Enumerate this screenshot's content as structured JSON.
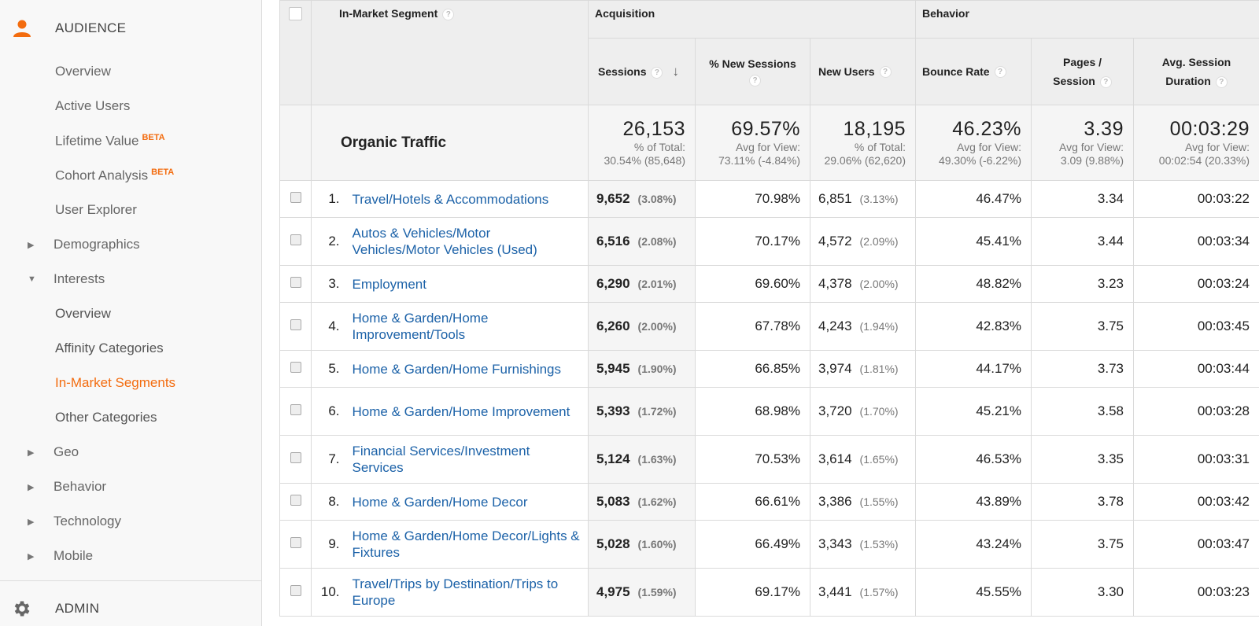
{
  "sidebar": {
    "audience_label": "AUDIENCE",
    "admin_label": "ADMIN",
    "beta": "BETA",
    "items": [
      {
        "label": "Overview"
      },
      {
        "label": "Active Users"
      },
      {
        "label": "Lifetime Value"
      },
      {
        "label": "Cohort Analysis"
      },
      {
        "label": "User Explorer"
      },
      {
        "label": "Demographics"
      },
      {
        "label": "Interests"
      },
      {
        "label": "Overview"
      },
      {
        "label": "Affinity Categories"
      },
      {
        "label": "In-Market Segments"
      },
      {
        "label": "Other Categories"
      },
      {
        "label": "Geo"
      },
      {
        "label": "Behavior"
      },
      {
        "label": "Technology"
      },
      {
        "label": "Mobile"
      }
    ],
    "accent": "#f36c0f"
  },
  "table": {
    "segment_header": "In-Market Segment",
    "groups": {
      "acquisition": "Acquisition",
      "behavior": "Behavior"
    },
    "columns": {
      "sessions": "Sessions",
      "new_sessions": "% New Sessions",
      "new_users": "New Users",
      "bounce_rate": "Bounce Rate",
      "pages_line1": "Pages /",
      "pages_line2": "Session",
      "duration_line1": "Avg. Session",
      "duration_line2": "Duration"
    },
    "summary": {
      "label": "Organic Traffic",
      "sessions": {
        "big": "26,153",
        "line1": "% of Total:",
        "line2": "30.54% (85,648)"
      },
      "new_sessions": {
        "big": "69.57%",
        "line1": "Avg for View:",
        "line2": "73.11% (-4.84%)"
      },
      "new_users": {
        "big": "18,195",
        "line1": "% of Total:",
        "line2": "29.06% (62,620)"
      },
      "bounce_rate": {
        "big": "46.23%",
        "line1": "Avg for View:",
        "line2": "49.30% (-6.22%)"
      },
      "pages": {
        "big": "3.39",
        "line1": "Avg for View:",
        "line2": "3.09 (9.88%)"
      },
      "duration": {
        "big": "00:03:29",
        "line1": "Avg for View:",
        "line2": "00:02:54 (20.33%)"
      }
    },
    "rows": [
      {
        "idx": "1.",
        "seg": "Travel/Hotels & Accommodations",
        "sessions": "9,652",
        "sess_pct": "(3.08%)",
        "new_sessions": "70.98%",
        "new_users": "6,851",
        "nu_pct": "(3.13%)",
        "bounce": "46.47%",
        "pages": "3.34",
        "duration": "00:03:22"
      },
      {
        "idx": "2.",
        "seg": "Autos & Vehicles/Motor Vehicles/Motor Vehicles (Used)",
        "sessions": "6,516",
        "sess_pct": "(2.08%)",
        "new_sessions": "70.17%",
        "new_users": "4,572",
        "nu_pct": "(2.09%)",
        "bounce": "45.41%",
        "pages": "3.44",
        "duration": "00:03:34"
      },
      {
        "idx": "3.",
        "seg": "Employment",
        "sessions": "6,290",
        "sess_pct": "(2.01%)",
        "new_sessions": "69.60%",
        "new_users": "4,378",
        "nu_pct": "(2.00%)",
        "bounce": "48.82%",
        "pages": "3.23",
        "duration": "00:03:24"
      },
      {
        "idx": "4.",
        "seg": "Home & Garden/Home Improvement/Tools",
        "sessions": "6,260",
        "sess_pct": "(2.00%)",
        "new_sessions": "67.78%",
        "new_users": "4,243",
        "nu_pct": "(1.94%)",
        "bounce": "42.83%",
        "pages": "3.75",
        "duration": "00:03:45"
      },
      {
        "idx": "5.",
        "seg": "Home & Garden/Home Furnishings",
        "sessions": "5,945",
        "sess_pct": "(1.90%)",
        "new_sessions": "66.85%",
        "new_users": "3,974",
        "nu_pct": "(1.81%)",
        "bounce": "44.17%",
        "pages": "3.73",
        "duration": "00:03:44"
      },
      {
        "idx": "6.",
        "seg": "Home & Garden/Home Improvement",
        "sessions": "5,393",
        "sess_pct": "(1.72%)",
        "new_sessions": "68.98%",
        "new_users": "3,720",
        "nu_pct": "(1.70%)",
        "bounce": "45.21%",
        "pages": "3.58",
        "duration": "00:03:28"
      },
      {
        "idx": "7.",
        "seg": "Financial Services/Investment Services",
        "sessions": "5,124",
        "sess_pct": "(1.63%)",
        "new_sessions": "70.53%",
        "new_users": "3,614",
        "nu_pct": "(1.65%)",
        "bounce": "46.53%",
        "pages": "3.35",
        "duration": "00:03:31"
      },
      {
        "idx": "8.",
        "seg": "Home & Garden/Home Decor",
        "sessions": "5,083",
        "sess_pct": "(1.62%)",
        "new_sessions": "66.61%",
        "new_users": "3,386",
        "nu_pct": "(1.55%)",
        "bounce": "43.89%",
        "pages": "3.78",
        "duration": "00:03:42"
      },
      {
        "idx": "9.",
        "seg": "Home & Garden/Home Decor/Lights & Fixtures",
        "sessions": "5,028",
        "sess_pct": "(1.60%)",
        "new_sessions": "66.49%",
        "new_users": "3,343",
        "nu_pct": "(1.53%)",
        "bounce": "43.24%",
        "pages": "3.75",
        "duration": "00:03:47"
      },
      {
        "idx": "10.",
        "seg": "Travel/Trips by Destination/Trips to Europe",
        "sessions": "4,975",
        "sess_pct": "(1.59%)",
        "new_sessions": "69.17%",
        "new_users": "3,441",
        "nu_pct": "(1.57%)",
        "bounce": "45.55%",
        "pages": "3.30",
        "duration": "00:03:23"
      }
    ]
  }
}
